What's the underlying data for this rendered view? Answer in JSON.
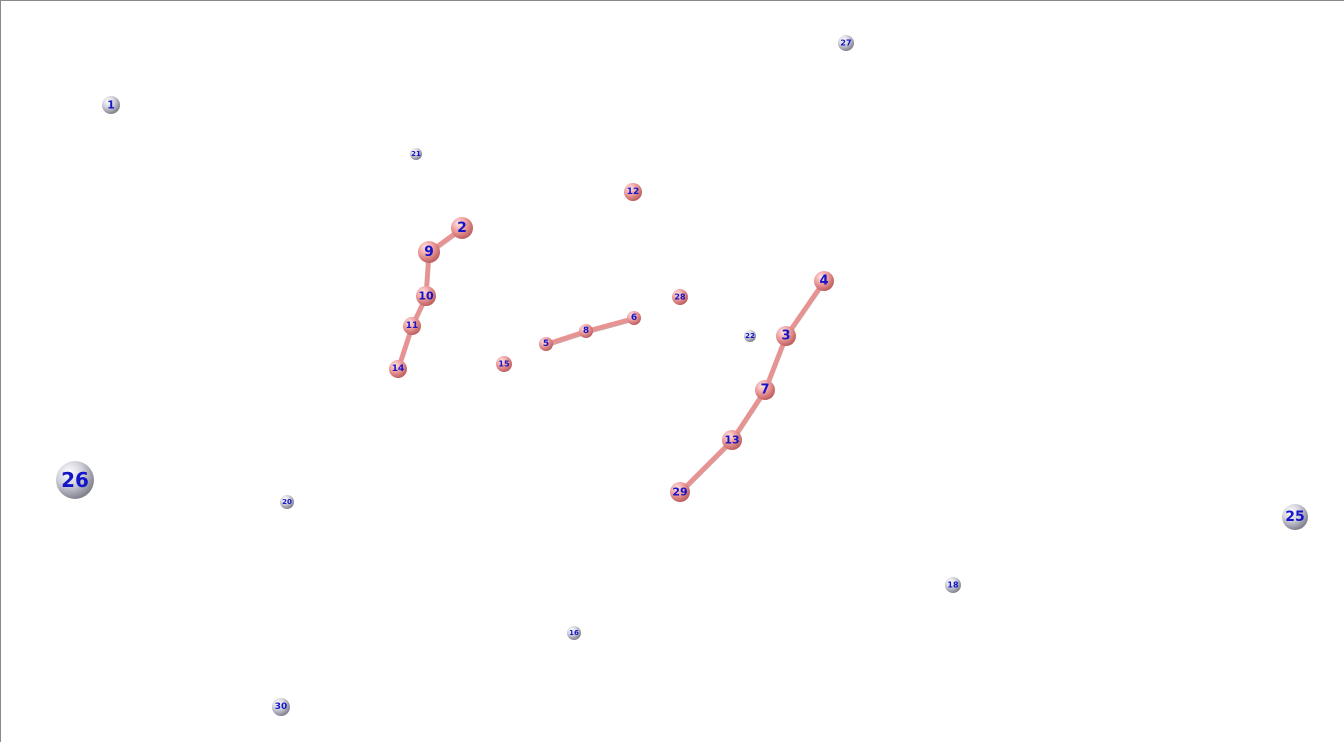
{
  "diagram": {
    "colors": {
      "label": "#1414c8",
      "gray_node_light": "#ffffff",
      "gray_node_mid": "#d2d2dc",
      "gray_node_dark": "#7a7a88",
      "pink_node_light": "#ffe4e4",
      "pink_node_mid": "#f0a0a0",
      "pink_node_dark": "#b85858",
      "edge": "#e89292",
      "edge_shadow": "#b86060"
    },
    "nodes": [
      {
        "id": "1",
        "group": "isolated"
      },
      {
        "id": "2",
        "group": "cluster"
      },
      {
        "id": "3",
        "group": "cluster"
      },
      {
        "id": "4",
        "group": "cluster"
      },
      {
        "id": "5",
        "group": "cluster"
      },
      {
        "id": "6",
        "group": "cluster"
      },
      {
        "id": "7",
        "group": "cluster"
      },
      {
        "id": "8",
        "group": "cluster"
      },
      {
        "id": "9",
        "group": "cluster"
      },
      {
        "id": "10",
        "group": "cluster"
      },
      {
        "id": "11",
        "group": "cluster"
      },
      {
        "id": "12",
        "group": "cluster"
      },
      {
        "id": "13",
        "group": "cluster"
      },
      {
        "id": "14",
        "group": "cluster"
      },
      {
        "id": "15",
        "group": "cluster"
      },
      {
        "id": "16",
        "group": "isolated"
      },
      {
        "id": "18",
        "group": "isolated"
      },
      {
        "id": "20",
        "group": "isolated"
      },
      {
        "id": "21",
        "group": "isolated"
      },
      {
        "id": "22",
        "group": "isolated"
      },
      {
        "id": "25",
        "group": "isolated"
      },
      {
        "id": "26",
        "group": "isolated"
      },
      {
        "id": "27",
        "group": "isolated"
      },
      {
        "id": "28",
        "group": "cluster"
      },
      {
        "id": "29",
        "group": "cluster"
      },
      {
        "id": "30",
        "group": "isolated"
      }
    ],
    "edges": [
      {
        "from": "2",
        "to": "9"
      },
      {
        "from": "9",
        "to": "10"
      },
      {
        "from": "10",
        "to": "11"
      },
      {
        "from": "11",
        "to": "14"
      },
      {
        "from": "5",
        "to": "8"
      },
      {
        "from": "8",
        "to": "6"
      },
      {
        "from": "4",
        "to": "3"
      },
      {
        "from": "3",
        "to": "7"
      },
      {
        "from": "7",
        "to": "13"
      },
      {
        "from": "13",
        "to": "29"
      }
    ]
  }
}
